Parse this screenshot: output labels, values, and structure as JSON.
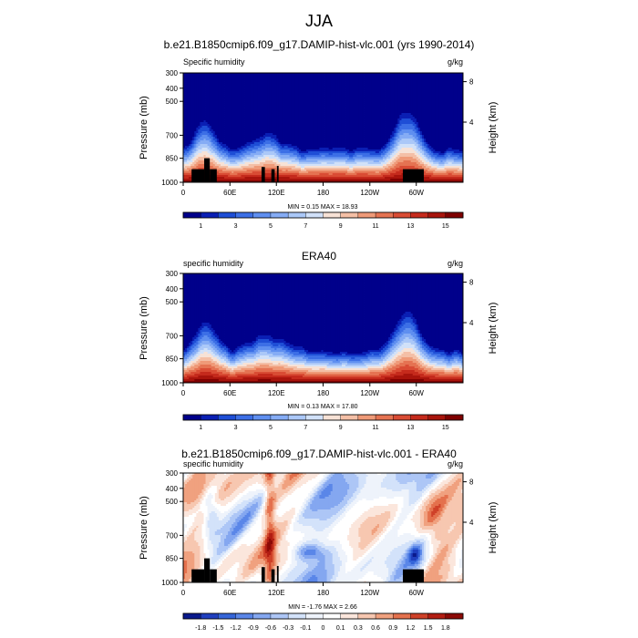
{
  "figure": {
    "title": "JJA"
  },
  "chart_data": [
    {
      "type": "contour",
      "title": "b.e21.B1850cmip6.f09_g17.DAMIP-hist-vlc.001 (yrs 1990-2014)",
      "subtitle_left": "Specific humidity",
      "subtitle_right": "g/kg",
      "ylabel": "Pressure (mb)",
      "ylabel_right": "Height (km)",
      "xticks": [
        "0",
        "60E",
        "120E",
        "180",
        "120W",
        "60W"
      ],
      "yticks": [
        "300",
        "400",
        "500",
        "700",
        "850",
        "1000"
      ],
      "yticks_right": [
        "8",
        "4"
      ],
      "stats": "MIN =   0.15  MAX =  18.93",
      "colorbar_labels": [
        "1",
        "3",
        "5",
        "7",
        "9",
        "11",
        "13",
        "15"
      ],
      "colorbar_colors": [
        "#00008b",
        "#0a1fb4",
        "#1e4ed6",
        "#3c6fe6",
        "#5f8ff0",
        "#85acf5",
        "#abc8f8",
        "#d1e1f9",
        "#f7e2d6",
        "#f4bfa6",
        "#ef9a78",
        "#e57352",
        "#d94c34",
        "#c52a1c",
        "#a8140c",
        "#7f0000"
      ],
      "min": 0.15,
      "max": 18.93
    },
    {
      "type": "contour",
      "title": "ERA40",
      "subtitle_left": "specific humidity",
      "subtitle_right": "g/kg",
      "ylabel": "Pressure (mb)",
      "ylabel_right": "Height (km)",
      "xticks": [
        "0",
        "60E",
        "120E",
        "180",
        "120W",
        "60W"
      ],
      "yticks": [
        "300",
        "400",
        "500",
        "700",
        "850",
        "1000"
      ],
      "yticks_right": [
        "8",
        "4"
      ],
      "stats": "MIN =   0.13  MAX =  17.80",
      "colorbar_labels": [
        "1",
        "3",
        "5",
        "7",
        "9",
        "11",
        "13",
        "15"
      ],
      "colorbar_colors": [
        "#00008b",
        "#0a1fb4",
        "#1e4ed6",
        "#3c6fe6",
        "#5f8ff0",
        "#85acf5",
        "#abc8f8",
        "#d1e1f9",
        "#f7e2d6",
        "#f4bfa6",
        "#ef9a78",
        "#e57352",
        "#d94c34",
        "#c52a1c",
        "#a8140c",
        "#7f0000"
      ],
      "min": 0.13,
      "max": 17.8
    },
    {
      "type": "contour",
      "title": "b.e21.B1850cmip6.f09_g17.DAMIP-hist-vlc.001 - ERA40",
      "subtitle_left": "specific humidity",
      "subtitle_right": "g/kg",
      "ylabel": "Pressure (mb)",
      "ylabel_right": "Height (km)",
      "xticks": [
        "0",
        "60E",
        "120E",
        "180",
        "120W",
        "60W"
      ],
      "yticks": [
        "300",
        "400",
        "500",
        "700",
        "850",
        "1000"
      ],
      "yticks_right": [
        "8",
        "4"
      ],
      "stats": "MIN =  -1.76  MAX =   2.66",
      "colorbar_labels": [
        "-1.8",
        "-1.5",
        "-1.2",
        "-0.9",
        "-0.6",
        "-0.3",
        "-0.1",
        "0",
        "0.1",
        "0.3",
        "0.6",
        "0.9",
        "1.2",
        "1.5",
        "1.8"
      ],
      "colorbar_colors": [
        "#0a1a8c",
        "#1f3fbf",
        "#3565d9",
        "#5a86e8",
        "#84a7f0",
        "#adc6f6",
        "#d3e2fa",
        "#eef3fb",
        "#ffffff",
        "#fbe6dc",
        "#f7c7b0",
        "#f0a17f",
        "#e4714d",
        "#cf4128",
        "#b21d12",
        "#8c0a06"
      ],
      "min": -1.76,
      "max": 2.66
    }
  ]
}
